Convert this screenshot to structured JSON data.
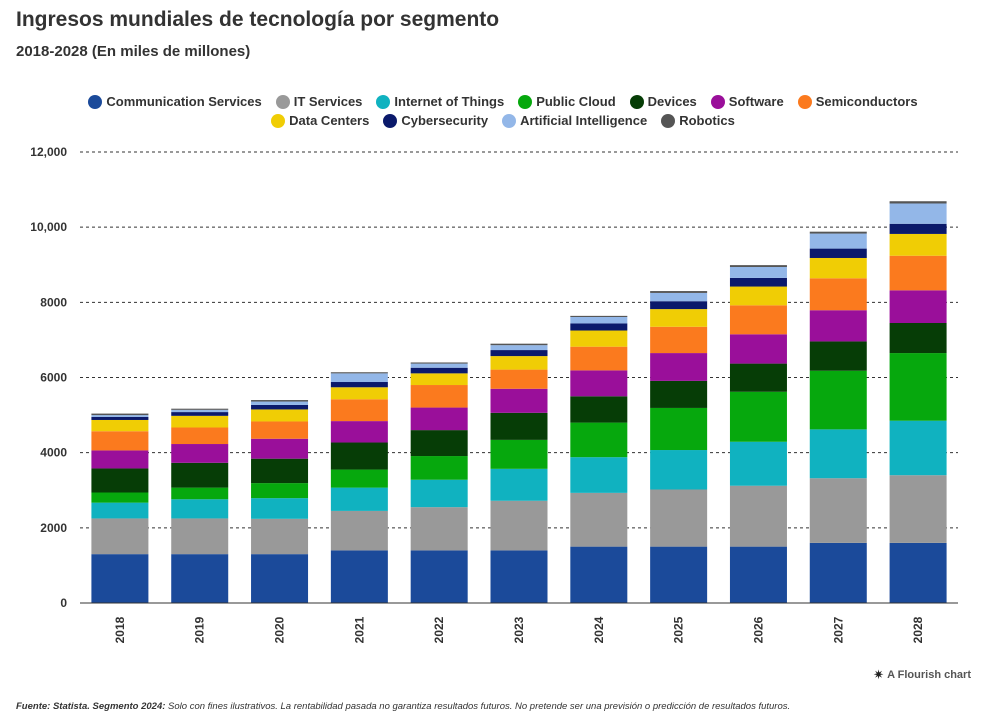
{
  "title": "Ingresos mundiales de tecnología por segmento",
  "subtitle": "2018-2028 (En miles de millones)",
  "credit": {
    "icon": "flourish-star-icon",
    "glyph": "✷",
    "text": "A Flourish chart"
  },
  "footer": {
    "source_label": "Fuente: Statista. Segmento 2024:",
    "disclaimer": " Solo con fines ilustrativos. La rentabilidad pasada no garantiza resultados futuros. No pretende ser una previsión o predicción de resultados futuros."
  },
  "chart_data": {
    "type": "bar",
    "stacked": true,
    "categories": [
      "2018",
      "2019",
      "2020",
      "2021",
      "2022",
      "2023",
      "2024",
      "2025",
      "2026",
      "2027",
      "2028"
    ],
    "ylim": [
      0,
      12000
    ],
    "yticks": [
      0,
      2000,
      4000,
      6000,
      8000,
      10000,
      12000
    ],
    "ytick_labels": [
      "0",
      "2000",
      "4000",
      "6000",
      "8000",
      "10,000",
      "12,000"
    ],
    "grid": true,
    "legend_position": "top-center",
    "series": [
      {
        "name": "Communication Services",
        "color": "#1b4a9a",
        "values": [
          1300,
          1300,
          1300,
          1400,
          1400,
          1400,
          1500,
          1500,
          1500,
          1600,
          1600
        ]
      },
      {
        "name": "IT Services",
        "color": "#999999",
        "values": [
          950,
          950,
          940,
          1050,
          1150,
          1320,
          1430,
          1520,
          1620,
          1720,
          1800
        ]
      },
      {
        "name": "Internet of Things",
        "color": "#10b2c0",
        "values": [
          420,
          510,
          550,
          620,
          730,
          850,
          950,
          1050,
          1170,
          1300,
          1450
        ]
      },
      {
        "name": "Public Cloud",
        "color": "#06a80d",
        "values": [
          270,
          310,
          400,
          480,
          630,
          770,
          920,
          1120,
          1330,
          1560,
          1800
        ]
      },
      {
        "name": "Devices",
        "color": "#063d06",
        "values": [
          640,
          660,
          650,
          720,
          690,
          720,
          700,
          720,
          750,
          780,
          800
        ]
      },
      {
        "name": "Software",
        "color": "#9a0f9a",
        "values": [
          480,
          500,
          530,
          570,
          600,
          640,
          690,
          740,
          780,
          830,
          870
        ]
      },
      {
        "name": "Semiconductors",
        "color": "#fb7a1e",
        "values": [
          510,
          440,
          460,
          580,
          600,
          510,
          630,
          700,
          770,
          850,
          920
        ]
      },
      {
        "name": "Data Centers",
        "color": "#f0cd05",
        "values": [
          300,
          310,
          320,
          320,
          310,
          360,
          430,
          470,
          500,
          540,
          580
        ]
      },
      {
        "name": "Cybersecurity",
        "color": "#0b1a6b",
        "values": [
          80,
          100,
          120,
          140,
          150,
          160,
          190,
          210,
          230,
          250,
          270
        ]
      },
      {
        "name": "Artificial Intelligence",
        "color": "#93b7e8",
        "values": [
          50,
          60,
          90,
          230,
          110,
          130,
          170,
          220,
          290,
          400,
          540
        ]
      },
      {
        "name": "Robotics",
        "color": "#555555",
        "values": [
          40,
          30,
          40,
          30,
          30,
          40,
          30,
          50,
          50,
          50,
          60
        ]
      }
    ]
  }
}
